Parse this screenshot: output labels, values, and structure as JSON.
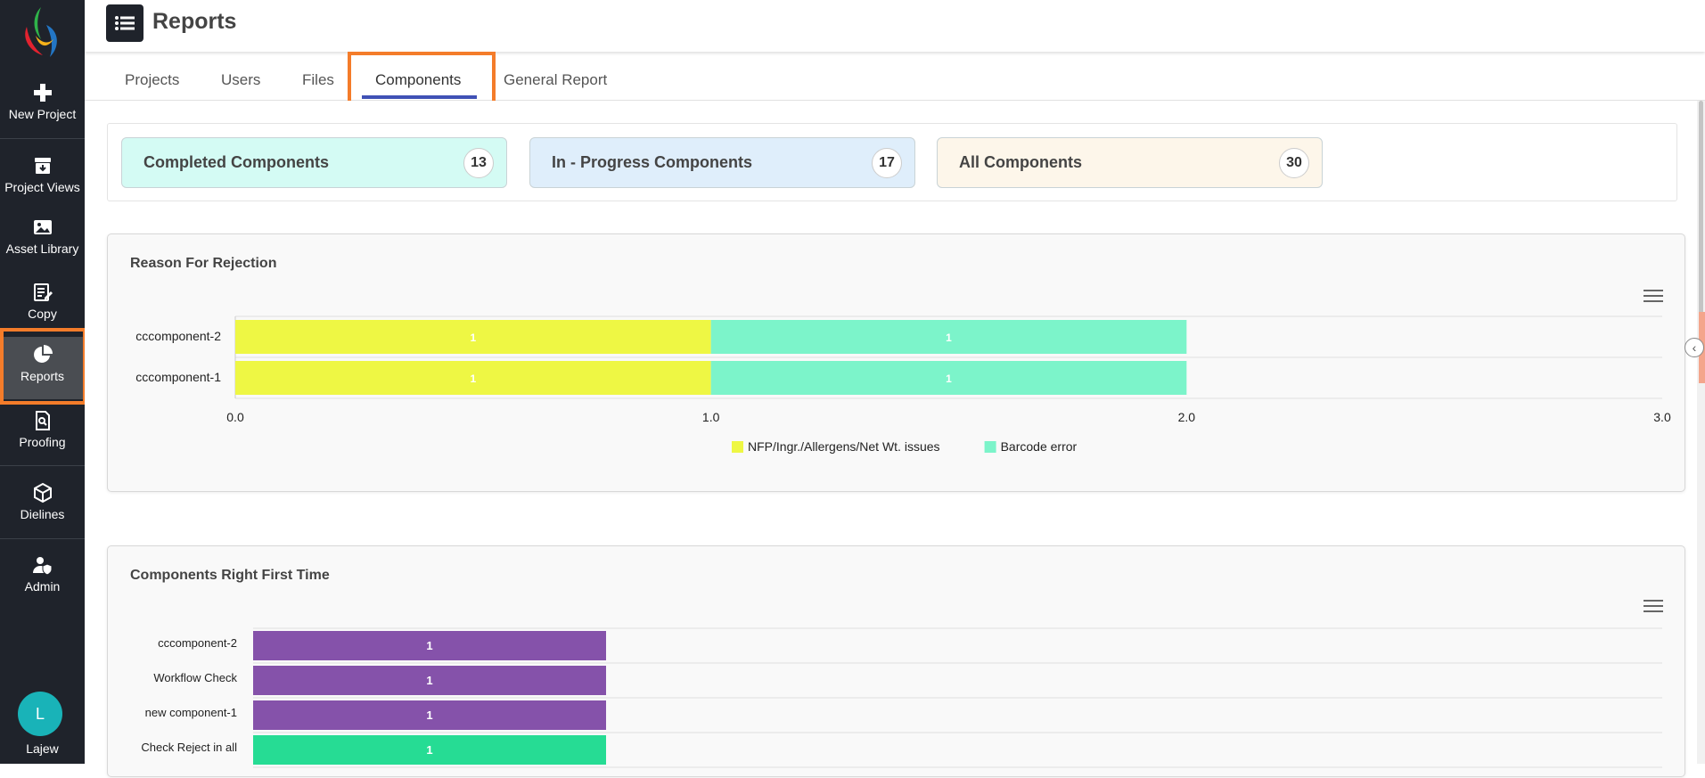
{
  "app": {
    "page_title": "Reports"
  },
  "sidebar": {
    "items": [
      {
        "label": "New Project",
        "icon": "plus-icon"
      },
      {
        "label": "Project Views",
        "icon": "archive-icon"
      },
      {
        "label": "Asset Library",
        "icon": "image-icon"
      },
      {
        "label": "Copy",
        "icon": "edit-icon"
      },
      {
        "label": "Reports",
        "icon": "pie-chart-icon",
        "active": true
      },
      {
        "label": "Proofing",
        "icon": "search-document-icon"
      },
      {
        "label": "Dielines",
        "icon": "box-icon"
      },
      {
        "label": "Admin",
        "icon": "user-shield-icon"
      }
    ],
    "user": {
      "initial": "L",
      "name": "Lajew"
    }
  },
  "tabs": [
    {
      "label": "Projects"
    },
    {
      "label": "Users"
    },
    {
      "label": "Files"
    },
    {
      "label": "Components",
      "active": true
    },
    {
      "label": "General Report"
    }
  ],
  "stats": [
    {
      "label": "Completed Components",
      "count": "13",
      "color": "#d4fbf4"
    },
    {
      "label": "In - Progress Components",
      "count": "17",
      "color": "#dfeefb"
    },
    {
      "label": "All Components",
      "count": "30",
      "color": "#fdf6ea"
    }
  ],
  "colors": {
    "highlight": "#f47c2a",
    "tab_underline": "#3f51b5",
    "sidebar_bg": "#1f232b"
  },
  "chart_data": [
    {
      "type": "bar",
      "orientation": "horizontal",
      "stacked": true,
      "title": "Reason For Rejection",
      "categories": [
        "cccomponent-2",
        "cccomponent-1"
      ],
      "series": [
        {
          "name": "NFP/Ingr./Allergens/Net Wt. issues",
          "values": [
            1,
            1
          ],
          "color": "#eef744"
        },
        {
          "name": "Barcode error",
          "values": [
            1,
            1
          ],
          "color": "#7cf4ca"
        }
      ],
      "xlim": [
        0,
        3
      ],
      "xticks": [
        "0.0",
        "1.0",
        "2.0",
        "3.0"
      ],
      "legend": "bottom-center"
    },
    {
      "type": "bar",
      "orientation": "horizontal",
      "title": "Components Right First Time",
      "categories": [
        "cccomponent-2",
        "Workflow Check",
        "new component-1",
        "Check Reject in all"
      ],
      "values": [
        1,
        1,
        1,
        1
      ],
      "colors": [
        "#8552aa",
        "#8552aa",
        "#8552aa",
        "#26dc94"
      ]
    }
  ]
}
